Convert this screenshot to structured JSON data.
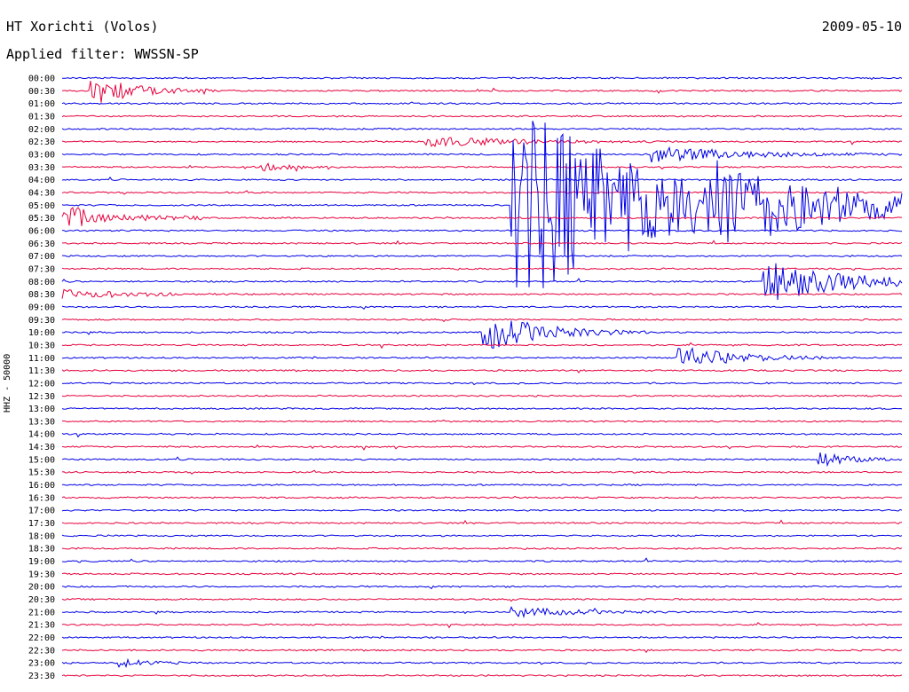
{
  "header": {
    "station": "HT Xorichti (Volos)",
    "date": "2009-05-10",
    "filter": "Applied filter: WWSSN-SP"
  },
  "side_label": "HHZ - 50000",
  "colors": {
    "blue": "#0000e6",
    "red": "#e6003c",
    "background": "#ffffff",
    "text": "#000000"
  },
  "chart_data": {
    "type": "helicorder",
    "title": "HT Xorichti (Volos)",
    "ylabel": "HHZ - 50000",
    "grid": false,
    "row_labels": [
      "00:00",
      "00:30",
      "01:00",
      "01:30",
      "02:00",
      "02:30",
      "03:00",
      "03:30",
      "04:00",
      "04:30",
      "05:00",
      "05:30",
      "06:00",
      "06:30",
      "07:00",
      "07:30",
      "08:00",
      "08:30",
      "09:00",
      "09:30",
      "10:00",
      "10:30",
      "11:00",
      "11:30",
      "12:00",
      "12:30",
      "13:00",
      "13:30",
      "14:00",
      "14:30",
      "15:00",
      "15:30",
      "16:00",
      "16:30",
      "17:00",
      "17:30",
      "18:00",
      "18:30",
      "19:00",
      "19:30",
      "20:00",
      "20:30",
      "21:00",
      "21:30",
      "22:00",
      "22:30",
      "23:00",
      "23:30"
    ],
    "minutes_per_row": 30,
    "color_cycle": [
      "blue",
      "red"
    ],
    "events": [
      {
        "time": "00:31",
        "amplitude": 1.4,
        "duration_min": 1.5
      },
      {
        "time": "02:43",
        "amplitude": 0.5,
        "duration_min": 3
      },
      {
        "time": "03:21",
        "amplitude": 0.8,
        "duration_min": 3
      },
      {
        "time": "03:37",
        "amplitude": 0.4,
        "duration_min": 1
      },
      {
        "time": "05:16",
        "amplitude": 10,
        "duration_min": 5
      },
      {
        "time": "05:23",
        "amplitude": 2.5,
        "duration_min": 4
      },
      {
        "time": "08:25",
        "amplitude": 2,
        "duration_min": 3
      },
      {
        "time": "10:15",
        "amplitude": 1.8,
        "duration_min": 2
      },
      {
        "time": "11:22",
        "amplitude": 1.1,
        "duration_min": 2
      },
      {
        "time": "15:27",
        "amplitude": 0.8,
        "duration_min": 1
      },
      {
        "time": "21:16",
        "amplitude": 0.5,
        "duration_min": 2
      },
      {
        "time": "23:02",
        "amplitude": 0.4,
        "duration_min": 1
      }
    ]
  }
}
